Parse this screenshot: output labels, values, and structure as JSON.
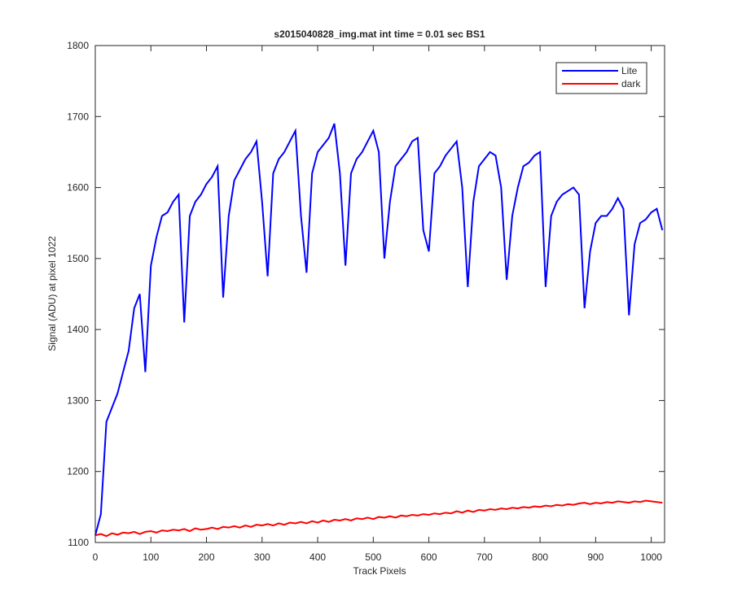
{
  "chart_data": {
    "type": "line",
    "title": "s2015040828_img.mat int time = 0.01 sec   BS1",
    "x_label": "Track Pixels",
    "y_label": "Signal (ADU) at pixel 1022",
    "x": [
      0,
      10,
      20,
      30,
      40,
      50,
      60,
      70,
      80,
      90,
      100,
      110,
      120,
      130,
      140,
      150,
      160,
      170,
      180,
      190,
      200,
      210,
      220,
      230,
      240,
      250,
      260,
      270,
      280,
      290,
      300,
      310,
      320,
      330,
      340,
      350,
      360,
      370,
      380,
      390,
      400,
      410,
      420,
      430,
      440,
      450,
      460,
      470,
      480,
      490,
      500,
      510,
      520,
      530,
      540,
      550,
      560,
      570,
      580,
      590,
      600,
      610,
      620,
      630,
      640,
      650,
      660,
      670,
      680,
      690,
      700,
      710,
      720,
      730,
      740,
      750,
      760,
      770,
      780,
      790,
      800,
      810,
      820,
      830,
      840,
      850,
      860,
      870,
      880,
      890,
      900,
      910,
      920,
      930,
      940,
      950,
      960,
      970,
      980,
      990,
      1000,
      1010,
      1020
    ],
    "series": [
      {
        "name": "Lite",
        "color": "#0000ff",
        "values": [
          1110,
          1140,
          1270,
          1290,
          1310,
          1340,
          1370,
          1430,
          1450,
          1340,
          1490,
          1530,
          1560,
          1565,
          1580,
          1590,
          1410,
          1560,
          1580,
          1590,
          1605,
          1615,
          1630,
          1445,
          1560,
          1610,
          1625,
          1640,
          1650,
          1665,
          1580,
          1475,
          1620,
          1640,
          1650,
          1665,
          1680,
          1560,
          1480,
          1620,
          1650,
          1660,
          1670,
          1690,
          1620,
          1490,
          1620,
          1640,
          1650,
          1665,
          1680,
          1650,
          1500,
          1580,
          1630,
          1640,
          1650,
          1665,
          1670,
          1540,
          1510,
          1620,
          1630,
          1645,
          1655,
          1665,
          1600,
          1460,
          1580,
          1630,
          1640,
          1650,
          1645,
          1600,
          1470,
          1560,
          1600,
          1630,
          1635,
          1645,
          1650,
          1460,
          1560,
          1580,
          1590,
          1595,
          1600,
          1590,
          1430,
          1510,
          1550,
          1560,
          1560,
          1570,
          1585,
          1570,
          1420,
          1520,
          1550,
          1555,
          1565,
          1570,
          1540
        ]
      },
      {
        "name": "dark",
        "color": "#ff0000",
        "values": [
          1110,
          1112,
          1109,
          1113,
          1111,
          1114,
          1113,
          1115,
          1112,
          1115,
          1116,
          1114,
          1117,
          1116,
          1118,
          1117,
          1119,
          1116,
          1120,
          1118,
          1119,
          1121,
          1119,
          1122,
          1121,
          1123,
          1121,
          1124,
          1122,
          1125,
          1124,
          1126,
          1124,
          1127,
          1125,
          1128,
          1127,
          1129,
          1127,
          1130,
          1128,
          1131,
          1129,
          1132,
          1131,
          1133,
          1131,
          1134,
          1133,
          1135,
          1133,
          1136,
          1135,
          1137,
          1135,
          1138,
          1137,
          1139,
          1138,
          1140,
          1139,
          1141,
          1140,
          1142,
          1141,
          1144,
          1142,
          1145,
          1143,
          1146,
          1145,
          1147,
          1146,
          1148,
          1147,
          1149,
          1148,
          1150,
          1149,
          1151,
          1150,
          1152,
          1151,
          1153,
          1152,
          1154,
          1153,
          1155,
          1156,
          1154,
          1156,
          1155,
          1157,
          1156,
          1158,
          1157,
          1156,
          1158,
          1157,
          1159,
          1158,
          1157,
          1156
        ]
      }
    ],
    "xlim": [
      0,
      1024
    ],
    "ylim": [
      1100,
      1800
    ],
    "xticks": [
      0,
      100,
      200,
      300,
      400,
      500,
      600,
      700,
      800,
      900,
      1000
    ],
    "yticks": [
      1100,
      1200,
      1300,
      1400,
      1500,
      1600,
      1700,
      1800
    ],
    "grid": false,
    "legend": "northeast"
  }
}
